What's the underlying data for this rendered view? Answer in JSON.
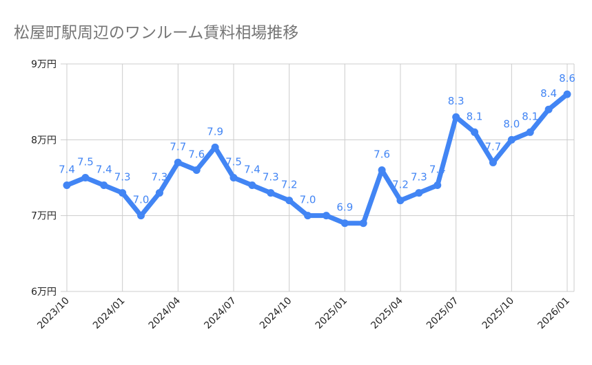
{
  "chart_data": {
    "type": "line",
    "title": "松屋町駅周辺のワンルーム賃料相場推移",
    "x": [
      "2023/10",
      "2023/11",
      "2023/12",
      "2024/01",
      "2024/02",
      "2024/03",
      "2024/04",
      "2024/05",
      "2024/06",
      "2024/07",
      "2024/08",
      "2024/09",
      "2024/10",
      "2024/11",
      "2024/12",
      "2025/01",
      "2025/02",
      "2025/03",
      "2025/04",
      "2025/05",
      "2025/06",
      "2025/07",
      "2025/08",
      "2025/09",
      "2025/10",
      "2025/11",
      "2025/12",
      "2026/01"
    ],
    "values": [
      7.4,
      7.5,
      7.4,
      7.3,
      7.0,
      7.3,
      7.7,
      7.6,
      7.9,
      7.5,
      7.4,
      7.3,
      7.2,
      7.0,
      7.0,
      6.9,
      6.9,
      7.6,
      7.2,
      7.3,
      7.4,
      8.3,
      8.1,
      7.7,
      8.0,
      8.1,
      8.4,
      8.6
    ],
    "data_labels": [
      "7.4",
      "7.5",
      "7.4",
      "7.3",
      "7.0",
      "7.3",
      "7.7",
      "7.6",
      "7.9",
      "7.5",
      "7.4",
      "7.3",
      "7.2",
      "7.0",
      null,
      "6.9",
      null,
      "7.6",
      "7.2",
      "7.3",
      "7.4",
      "8.3",
      "8.1",
      "7.7",
      "8.0",
      "8.1",
      "8.4",
      "8.6"
    ],
    "x_tick_labels": [
      "2023/10",
      "2024/01",
      "2024/04",
      "2024/07",
      "2024/10",
      "2025/01",
      "2025/04",
      "2025/07",
      "2025/10",
      "2026/01"
    ],
    "y_ticks": [
      6,
      7,
      8,
      9
    ],
    "y_tick_labels": [
      "6万円",
      "7万円",
      "8万円",
      "9万円"
    ],
    "ylim": [
      6,
      9
    ],
    "grid": true,
    "legend": "none",
    "series_color": "#4285f4",
    "xlabel": "",
    "ylabel": ""
  }
}
